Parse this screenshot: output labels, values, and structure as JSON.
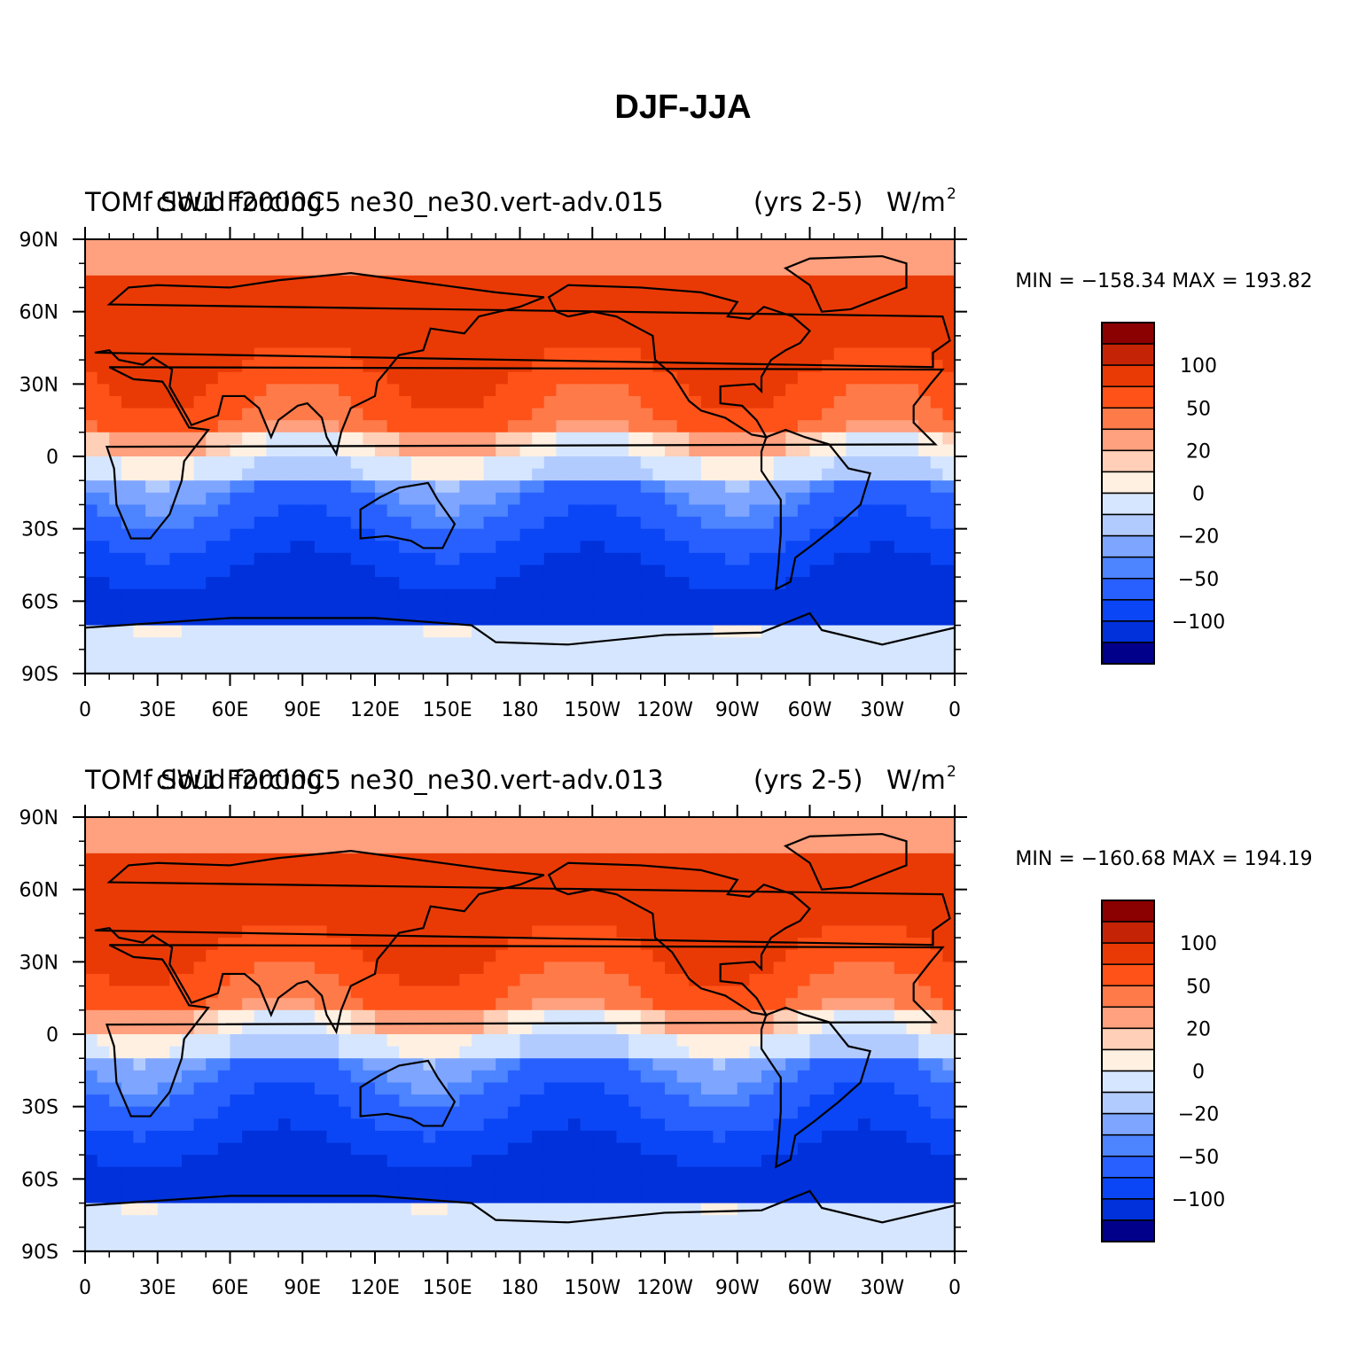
{
  "title": "DJF-JJA",
  "colors": {
    "bins": [
      "#00008b",
      "#001eb4",
      "#0031da",
      "#0a46f5",
      "#2860ff",
      "#4d84ff",
      "#7ea5ff",
      "#b2cbff",
      "#d6e6ff",
      "#fff0e1",
      "#ffcfb7",
      "#ffa07e",
      "#ff7a49",
      "#ff5218",
      "#e93a06",
      "#c42405",
      "#8b0000"
    ],
    "land_outline": "#000000"
  },
  "chart_data": [
    {
      "type": "contour-map",
      "title_left_overlap_a": "TOMf SW1 F2000C5 ne30_ne30.vert-adv.015",
      "title_left_overlap_b": "cloud forcing",
      "title_left": "TOMf SW1 F2000C5 ne30_ne30.vert-adv.015",
      "title_center": "cloud forcing",
      "title_years": "(yrs 2-5)",
      "units": "W/m",
      "units_sup": "2",
      "stats": "MIN = −158.34  MAX = 193.82",
      "x_ticks": [
        "0",
        "30E",
        "60E",
        "90E",
        "120E",
        "150E",
        "180",
        "150W",
        "120W",
        "90W",
        "60W",
        "30W",
        "0"
      ],
      "y_ticks": [
        "90N",
        "60N",
        "30N",
        "0",
        "30S",
        "60S",
        "90S"
      ],
      "colorbar_labels": [
        "100",
        "50",
        "20",
        "0",
        "−20",
        "−50",
        "−100"
      ]
    },
    {
      "type": "contour-map",
      "title_left": "TOMf SW1 F2000C5 ne30_ne30.vert-adv.013",
      "title_center": "cloud forcing",
      "title_years": "(yrs 2-5)",
      "units": "W/m",
      "units_sup": "2",
      "stats": "MIN = −160.68  MAX = 194.19",
      "x_ticks": [
        "0",
        "30E",
        "60E",
        "90E",
        "120E",
        "150E",
        "180",
        "150W",
        "120W",
        "90W",
        "60W",
        "30W",
        "0"
      ],
      "y_ticks": [
        "90N",
        "60N",
        "30N",
        "0",
        "30S",
        "60S",
        "90S"
      ],
      "colorbar_labels": [
        "100",
        "50",
        "20",
        "0",
        "−20",
        "−50",
        "−100"
      ]
    }
  ]
}
